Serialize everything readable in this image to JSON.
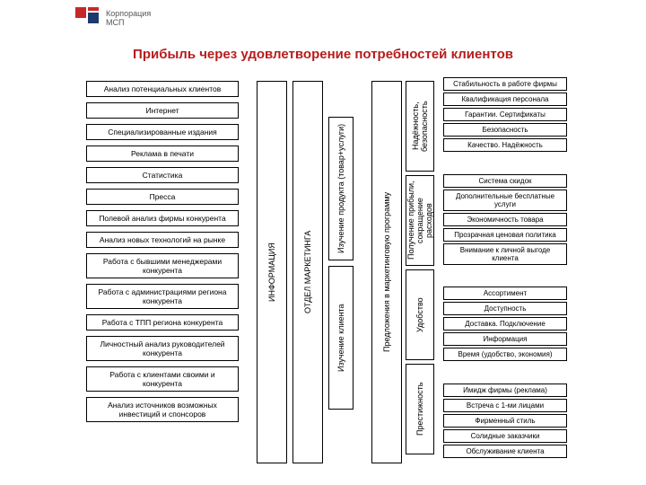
{
  "logo_text": "Корпорация\nМСП",
  "title": "Прибыль через удовлетворение потребностей клиентов",
  "left_boxes": [
    "Анализ потенциальных клиентов",
    "Интернет",
    "Специализированные издания",
    "Реклама в печати",
    "Статистика",
    "Пресса",
    "Полевой анализ фирмы конкурента",
    "Анализ новых технологий на рынке",
    "Работа с бывшими менеджерами конкурента",
    "Работа с администрациями региона конкурента",
    "Работа с ТПП региона конкурента",
    "Личностный анализ руководителей конкурента",
    "Работа с клиентами своими и конкурента",
    "Анализ источников возможных инвестиций и спонсоров"
  ],
  "mid_info": "ИНФОРМАЦИЯ",
  "mid_dept": "ОТДЕЛ МАРКЕТИНГА",
  "mid_sub1": "Изучение продукта (товар+услуги)",
  "mid_sub2": "Изучение клиента",
  "program": "Предложения в маркетинговую программу",
  "categories": [
    "Надёжность, безопасность",
    "Получение прибыли, сокращение расходов",
    "Удобство",
    "Престижность"
  ],
  "right_groups": [
    [
      "Стабильность в работе фирмы",
      "Квалификация персонала",
      "Гарантии. Сертификаты",
      "Безопасность",
      "Качество. Надёжность"
    ],
    [
      "Система скидок",
      "Дополнительные бесплатные услуги",
      "Экономичность товара",
      "Прозрачная ценовая политика",
      "Внимание к личной выгоде клиента"
    ],
    [
      "Ассортимент",
      "Доступность",
      "Доставка. Подключение",
      "Информация",
      "Время (удобство, экономия)"
    ],
    [
      "Имидж фирмы (реклама)",
      "Встреча с 1-ми лицами",
      "Фирменный стиль",
      "Солидные заказчики",
      "Обслуживание клиента"
    ]
  ],
  "colors": {
    "title": "#b71c1c",
    "border": "#000000",
    "bg": "#ffffff"
  }
}
